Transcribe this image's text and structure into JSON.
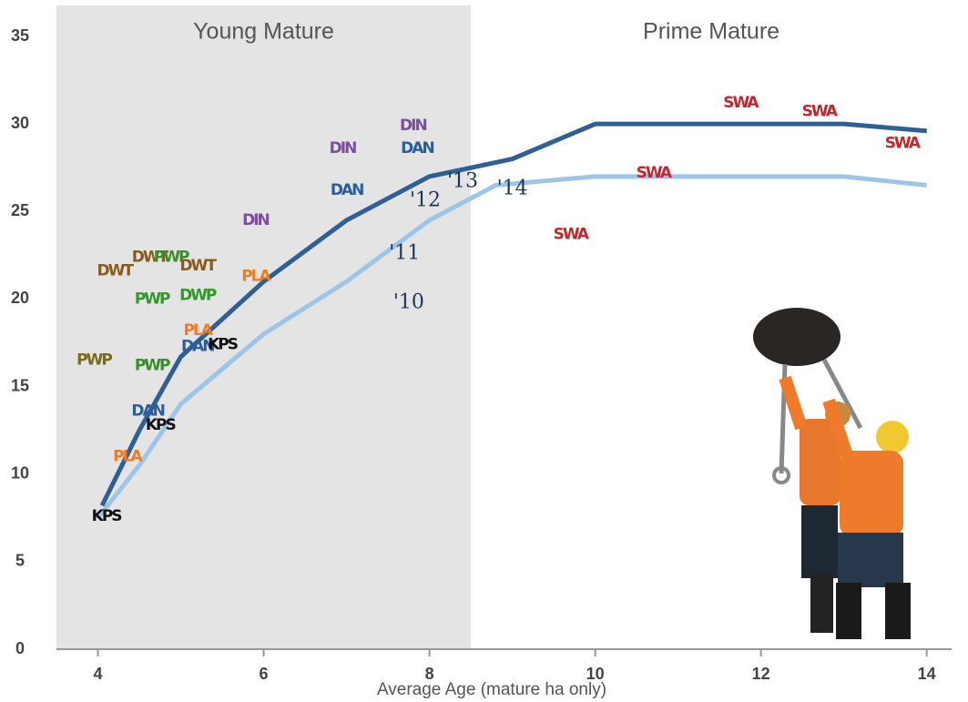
{
  "chart_data": {
    "type": "line",
    "x_label": "Average Age (mature ha only)",
    "xlim": [
      3.5,
      14.3
    ],
    "ylim": [
      0,
      35
    ],
    "xticks": [
      4,
      6,
      8,
      10,
      12,
      14
    ],
    "yticks": [
      0,
      5,
      10,
      15,
      20,
      25,
      30,
      35
    ],
    "regions": [
      {
        "label": "Young Mature",
        "xlim": [
          3.5,
          8.5
        ],
        "color": "#e4e4e4"
      },
      {
        "label": "Prime Mature",
        "xlim": [
          8.5,
          14.3
        ],
        "color": "#ffffff"
      }
    ],
    "series": [
      {
        "color": "#9ec5e8",
        "x": [
          4.0,
          4.5,
          5.0,
          6.0,
          7.0,
          8.0,
          8.8,
          10.0,
          13.0,
          14.0
        ],
        "values": [
          7.5,
          10.5,
          14,
          18,
          21,
          24.5,
          26.5,
          27,
          27,
          26.5
        ]
      },
      {
        "color": "#2f5f95",
        "x": [
          4.05,
          4.5,
          5.0,
          6.0,
          7.0,
          8.0,
          9.0,
          10.0,
          13.0,
          14.0
        ],
        "values": [
          8.2,
          12.5,
          16.7,
          21,
          24.5,
          27,
          28,
          30,
          30,
          29.6
        ]
      }
    ],
    "points": [
      {
        "label": "KPS",
        "x": 4.1,
        "y": 7.6,
        "color": "#111111"
      },
      {
        "label": "PLA",
        "x": 4.35,
        "y": 11,
        "color": "#f07b22"
      },
      {
        "label": "DAN",
        "x": 4.6,
        "y": 13.6,
        "color": "#2a5d9a"
      },
      {
        "label": "KPS",
        "x": 4.75,
        "y": 12.8,
        "color": "#111111"
      },
      {
        "label": "PWP",
        "x": 3.95,
        "y": 16.5,
        "color": "#7a6a1a"
      },
      {
        "label": "PWP",
        "x": 4.65,
        "y": 16.2,
        "color": "#3c8c2e"
      },
      {
        "label": "DWT",
        "x": 4.2,
        "y": 21.6,
        "color": "#8a5a1c"
      },
      {
        "label": "DWT",
        "x": 4.62,
        "y": 22.4,
        "color": "#8a5a1c"
      },
      {
        "label": "PWP",
        "x": 4.88,
        "y": 22.4,
        "color": "#3c8c2e"
      },
      {
        "label": "DWT",
        "x": 5.2,
        "y": 21.9,
        "color": "#8a5a1c"
      },
      {
        "label": "PWP",
        "x": 4.65,
        "y": 20.0,
        "color": "#2f9a2a"
      },
      {
        "label": "DWP",
        "x": 5.2,
        "y": 20.2,
        "color": "#2f9a2a"
      },
      {
        "label": "PLA",
        "x": 5.2,
        "y": 18.2,
        "color": "#f07b22"
      },
      {
        "label": "DAN",
        "x": 5.2,
        "y": 17.3,
        "color": "#2a5d9a"
      },
      {
        "label": "KPS",
        "x": 5.5,
        "y": 17.4,
        "color": "#111111"
      },
      {
        "label": "DIN",
        "x": 5.9,
        "y": 24.5,
        "color": "#7a4f9e"
      },
      {
        "label": "PLA",
        "x": 5.9,
        "y": 21.3,
        "color": "#f07b22"
      },
      {
        "label": "DIN",
        "x": 6.95,
        "y": 28.6,
        "color": "#7a4f9e"
      },
      {
        "label": "DAN",
        "x": 7.0,
        "y": 26.2,
        "color": "#2a5d9a"
      },
      {
        "label": "DIN",
        "x": 7.8,
        "y": 29.9,
        "color": "#7a4f9e"
      },
      {
        "label": "DAN",
        "x": 7.85,
        "y": 28.6,
        "color": "#2a5d9a"
      },
      {
        "label": "SWA",
        "x": 9.7,
        "y": 23.7,
        "color": "#c0282e"
      },
      {
        "label": "SWA",
        "x": 10.7,
        "y": 27.2,
        "color": "#c0282e"
      },
      {
        "label": "SWA",
        "x": 11.75,
        "y": 31.2,
        "color": "#c0282e"
      },
      {
        "label": "SWA",
        "x": 12.7,
        "y": 30.7,
        "color": "#c0282e"
      },
      {
        "label": "SWA",
        "x": 13.7,
        "y": 28.9,
        "color": "#c0282e"
      }
    ],
    "annotations": [
      {
        "text": "'10",
        "x": 7.75,
        "y": 19.8
      },
      {
        "text": "'11",
        "x": 7.7,
        "y": 22.6
      },
      {
        "text": "'12",
        "x": 7.95,
        "y": 25.6
      },
      {
        "text": "'13",
        "x": 8.4,
        "y": 26.7
      },
      {
        "text": "'14",
        "x": 9.0,
        "y": 26.3
      }
    ]
  }
}
